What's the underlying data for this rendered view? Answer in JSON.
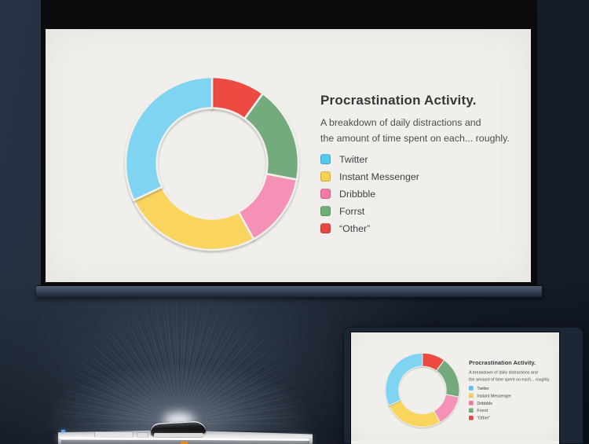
{
  "slide": {
    "title": "Procrastination Activity.",
    "subtitle_line1": "A breakdown of daily distractions and",
    "subtitle_line2": "the amount of time spent on each... roughly."
  },
  "chart_data": {
    "type": "pie",
    "variant": "donut",
    "title": "Procrastination Activity.",
    "subtitle": [
      "A breakdown of daily distractions and",
      "the amount of time spent on each... roughly."
    ],
    "legend_position": "right",
    "value_unit": "percent-of-day (estimated from slice angles, no numbers printed)",
    "segments": [
      {
        "label": "Twitter",
        "value": 32,
        "color": "#7fd4f1",
        "swatch": "#54c8f0"
      },
      {
        "label": "Instant Messenger",
        "value": 26,
        "color": "#f9d55e",
        "swatch": "#f8d053"
      },
      {
        "label": "Dribbble",
        "value": 14,
        "color": "#f591b6",
        "swatch": "#f279a5"
      },
      {
        "label": "Forrst",
        "value": 18,
        "color": "#73ab7d",
        "swatch": "#6fae74"
      },
      {
        "label": "“Other”",
        "value": 10,
        "color": "#ed4a42",
        "swatch": "#e6483f"
      }
    ],
    "clockwise_from_top_order": [
      4,
      3,
      2,
      1,
      0
    ],
    "start_angle_deg": 0,
    "inner_radius_ratio": 0.64
  },
  "scene": {
    "colors": {
      "background_navy": "#1e2737",
      "slide_background": "#f0efec",
      "screen_frame_black": "#0b0b0d",
      "screen_bottom_bar": "#38455a",
      "beam_light": "#dfe7f2",
      "projector_silver": "#c7cace",
      "projector_led_blue": "#5aa0e8",
      "projector_accent_orange": "#e08a2c"
    }
  }
}
